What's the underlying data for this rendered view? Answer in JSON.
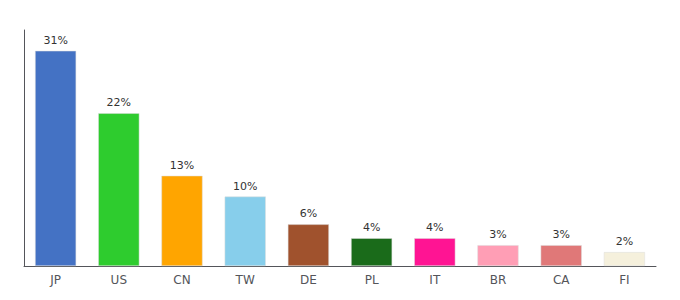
{
  "chart_data": {
    "type": "bar",
    "categories": [
      "JP",
      "US",
      "CN",
      "TW",
      "DE",
      "PL",
      "IT",
      "BR",
      "CA",
      "FI"
    ],
    "values": [
      31,
      22,
      13,
      10,
      6,
      4,
      4,
      3,
      3,
      2
    ],
    "value_labels": [
      "31%",
      "22%",
      "13%",
      "10%",
      "6%",
      "4%",
      "4%",
      "3%",
      "3%",
      "2%"
    ],
    "colors": [
      "#4472c4",
      "#2ecc2e",
      "#ffa500",
      "#87ceeb",
      "#a0522d",
      "#1a6b1a",
      "#ff1493",
      "#ff9eb5",
      "#e07878",
      "#f5f0dc"
    ],
    "ylim": [
      0,
      34
    ],
    "data_labels": true,
    "tick_labels": "x",
    "grid": false
  }
}
